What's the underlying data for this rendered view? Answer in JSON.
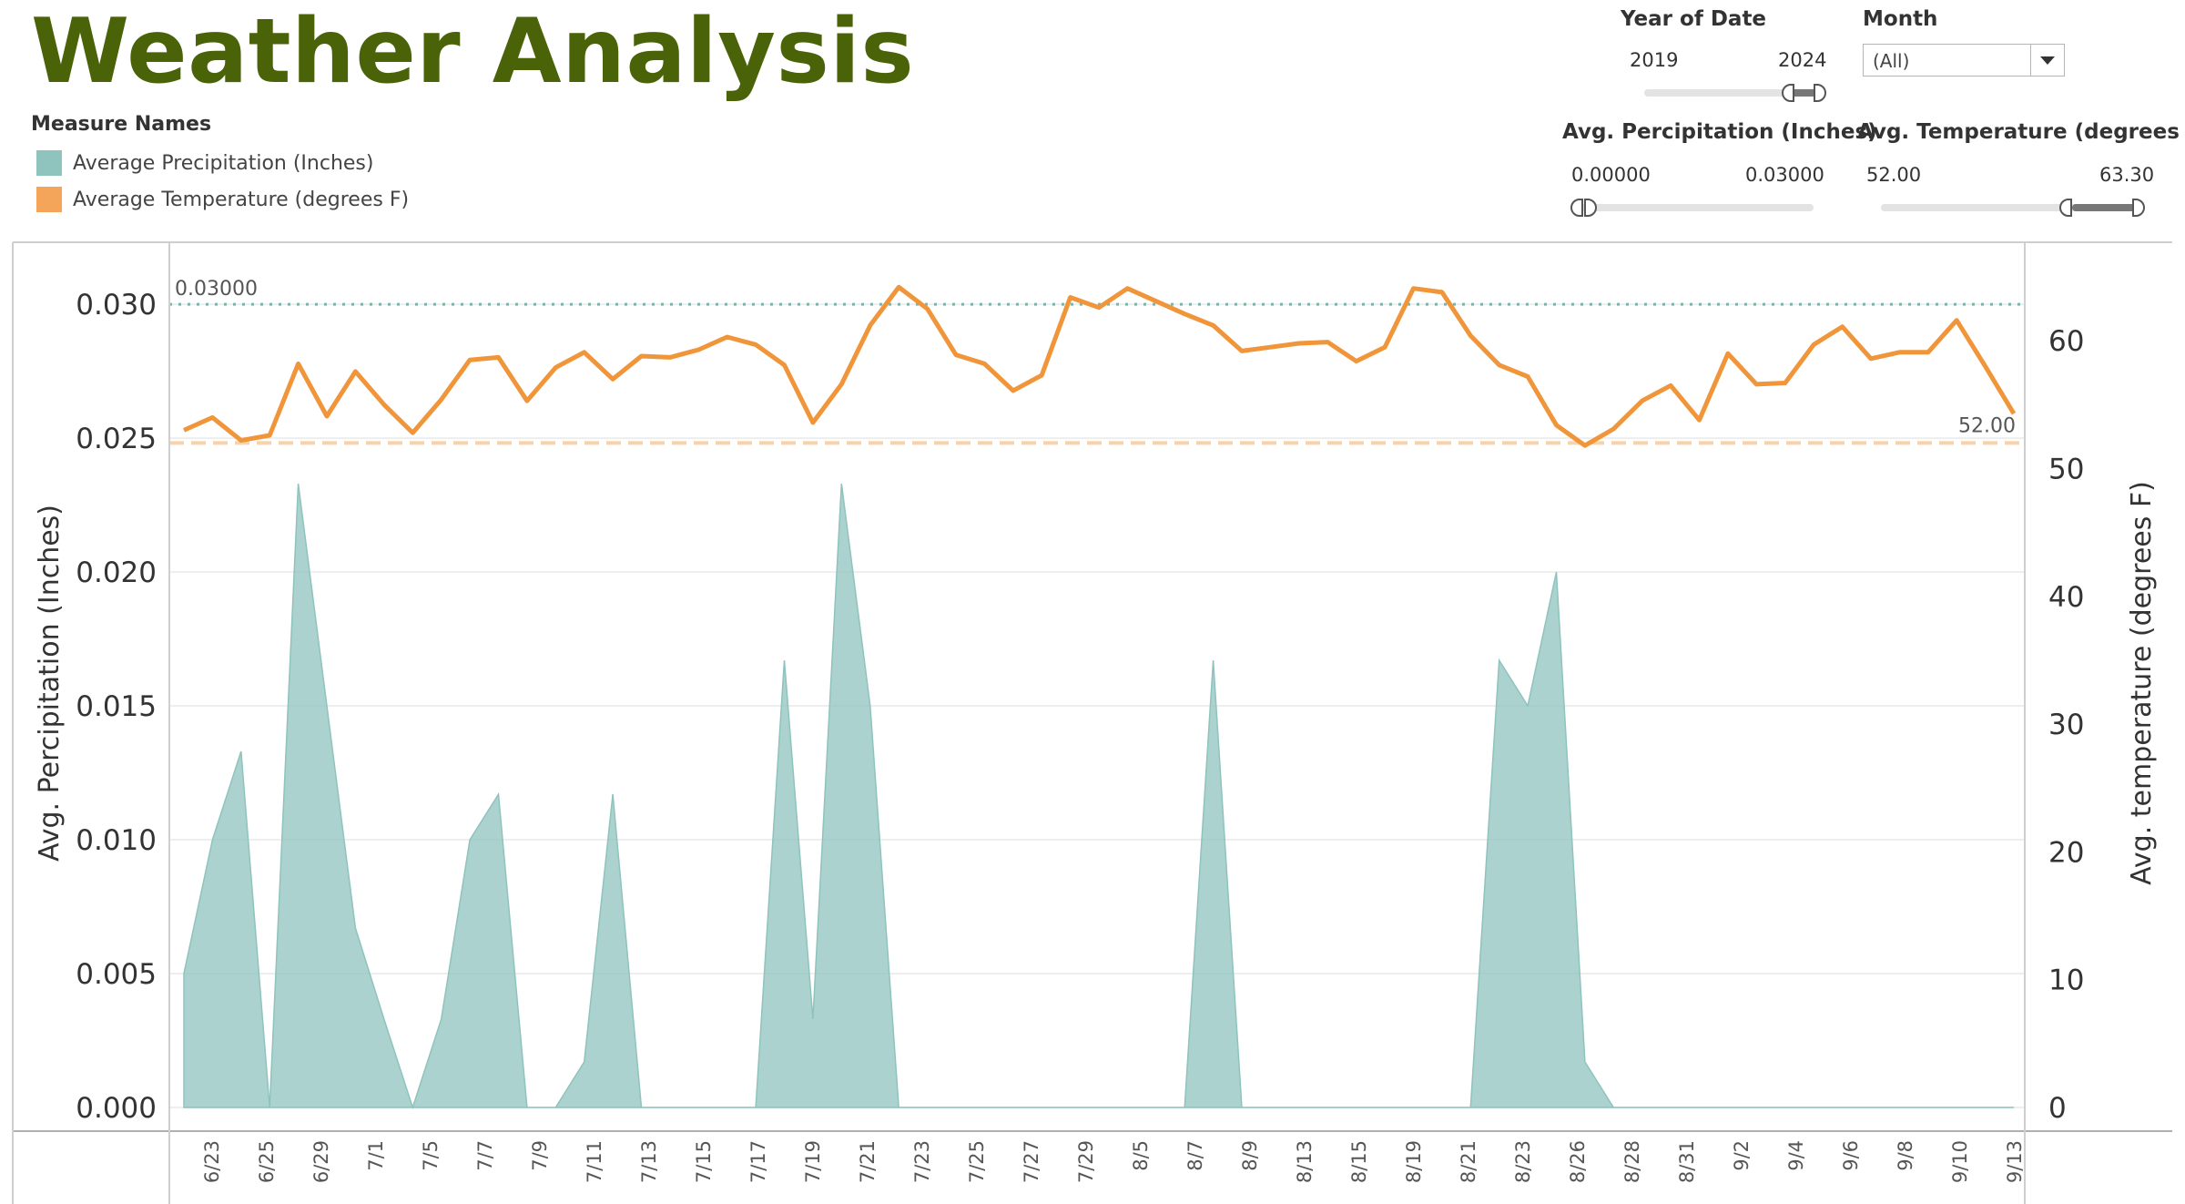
{
  "page": {
    "title": "Weather Analysis"
  },
  "legend": {
    "title": "Measure Names",
    "items": [
      {
        "label": "Average Precipitation (Inches)",
        "color": "#8fc3bd"
      },
      {
        "label": "Average Temperature (degrees F)",
        "color": "#f5a55a"
      }
    ]
  },
  "filters": {
    "year": {
      "title": "Year of Date",
      "min": "2019",
      "max": "2024"
    },
    "month": {
      "title": "Month",
      "value": "(All)"
    },
    "precip": {
      "title": "Avg. Percipitation (Inches)",
      "min": "0.00000",
      "max": "0.03000",
      "selected_min": 0.0,
      "selected_max": 0.0001
    },
    "temp": {
      "title": "Avg. Temperature (degrees F)",
      "min": "52.00",
      "max": "63.30",
      "selected_min": 52.0,
      "selected_max": 63.3
    }
  },
  "colors": {
    "precip": "#8fc3bd",
    "temp": "#f0953a",
    "precip_ref": "#79b5ae",
    "temp_ref": "#f8d2a8",
    "title": "#4a6308"
  },
  "chart_data": {
    "type": "area",
    "title": "",
    "xlabel": "",
    "y_left_label": "Avg. Percipitation (Inches)",
    "y_right_label": "Avg. temperature (degrees F)",
    "y_left_range": [
      0,
      0.0315
    ],
    "y_right_range": [
      0,
      66
    ],
    "y_left_ticks": [
      "0.000",
      "0.005",
      "0.010",
      "0.015",
      "0.020",
      "0.025",
      "0.030"
    ],
    "y_right_ticks": [
      "0",
      "10",
      "20",
      "30",
      "40",
      "50",
      "60"
    ],
    "x_tick_labels": [
      "6/23",
      "6/25",
      "6/29",
      "7/1",
      "7/5",
      "7/7",
      "7/9",
      "7/11",
      "7/13",
      "7/15",
      "7/17",
      "7/19",
      "7/21",
      "7/23",
      "7/25",
      "7/27",
      "7/29",
      "8/5",
      "8/7",
      "8/9",
      "8/13",
      "8/15",
      "8/19",
      "8/21",
      "8/23",
      "8/26",
      "8/28",
      "8/31",
      "9/2",
      "9/4",
      "9/6",
      "9/8",
      "9/10",
      "9/13"
    ],
    "reference_lines": [
      {
        "axis": "left",
        "value": 0.03,
        "label": "0.03000"
      },
      {
        "axis": "right",
        "value": 52.0,
        "label": "52.00"
      }
    ],
    "series": [
      {
        "name": "Average Precipitation (Inches)",
        "axis": "left",
        "mark": "area",
        "values": [
          0.005,
          0.01,
          0.0133,
          0.0,
          0.0233,
          0.015,
          0.0067,
          0.0033,
          0.0,
          0.0033,
          0.01,
          0.0117,
          0.0,
          0.0,
          0.0017,
          0.0117,
          0.0,
          0.0,
          0.0,
          0.0,
          0.0,
          0.0167,
          0.0033,
          0.0233,
          0.015,
          0.0,
          0.0,
          0.0,
          0.0,
          0.0,
          0.0,
          0.0,
          0.0,
          0.0,
          0.0,
          0.0,
          0.0167,
          0.0,
          0.0,
          0.0,
          0.0,
          0.0,
          0.0,
          0.0,
          0.0,
          0.0,
          0.0167,
          0.015,
          0.02,
          0.0017,
          0.0,
          0.0,
          0.0,
          0.0,
          0.0,
          0.0,
          0.0,
          0.0,
          0.0,
          0.0,
          0.0,
          0.0,
          0.0,
          0.0,
          0.0
        ]
      },
      {
        "name": "Average Temperature (degrees F)",
        "axis": "right",
        "mark": "line",
        "values": [
          53.0,
          54.0,
          52.2,
          52.6,
          58.2,
          54.1,
          57.6,
          55.0,
          52.8,
          55.4,
          58.5,
          58.7,
          55.3,
          57.9,
          59.1,
          57.0,
          58.8,
          58.7,
          59.3,
          60.3,
          59.7,
          58.1,
          53.6,
          56.6,
          61.2,
          64.2,
          62.5,
          58.9,
          58.2,
          56.1,
          57.3,
          63.4,
          62.6,
          64.1,
          63.1,
          62.1,
          61.2,
          59.2,
          59.5,
          59.8,
          59.9,
          58.4,
          59.5,
          64.1,
          63.8,
          60.4,
          58.1,
          57.2,
          53.4,
          51.8,
          53.1,
          55.3,
          56.5,
          53.8,
          59.0,
          56.6,
          56.7,
          59.7,
          61.1,
          58.6,
          59.1,
          59.1,
          61.6,
          58.0,
          54.3
        ]
      }
    ]
  }
}
